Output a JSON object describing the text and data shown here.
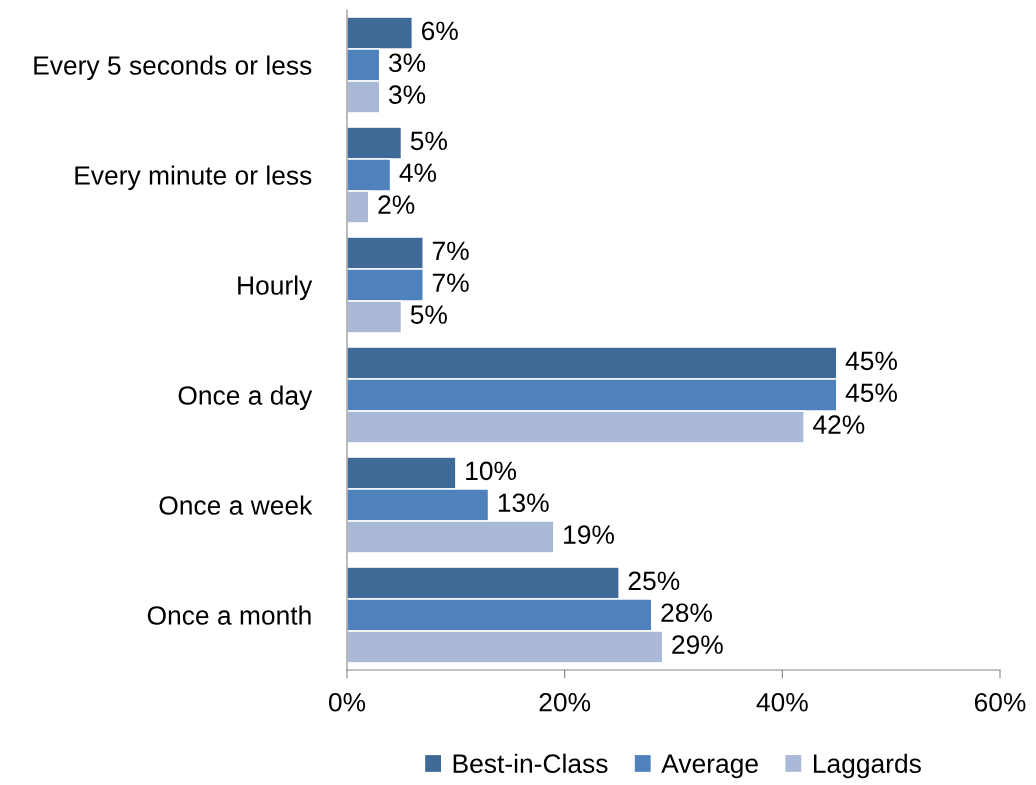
{
  "chart_data": {
    "type": "bar",
    "orientation": "horizontal",
    "categories": [
      "Every 5 seconds or less",
      "Every minute or less",
      "Hourly",
      "Once a day",
      "Once a week",
      "Once a month"
    ],
    "series": [
      {
        "name": "Best-in-Class",
        "color": "#3f6997",
        "values": [
          6,
          5,
          7,
          45,
          10,
          25
        ],
        "value_labels": [
          "6%",
          "5%",
          "7%",
          "45%",
          "10%",
          "25%"
        ]
      },
      {
        "name": "Average",
        "color": "#4f81bd",
        "values": [
          3,
          4,
          7,
          45,
          13,
          28
        ],
        "value_labels": [
          "3%",
          "4%",
          "7%",
          "45%",
          "13%",
          "28%"
        ]
      },
      {
        "name": "Laggards",
        "color": "#aab9d8",
        "values": [
          3,
          2,
          5,
          42,
          19,
          29
        ],
        "value_labels": [
          "3%",
          "2%",
          "5%",
          "42%",
          "19%",
          "29%"
        ]
      }
    ],
    "xlim": [
      0,
      60
    ],
    "xticks": [
      {
        "value": 0,
        "label": "0%"
      },
      {
        "value": 20,
        "label": "20%"
      },
      {
        "value": 40,
        "label": "40%"
      },
      {
        "value": 60,
        "label": "60%"
      }
    ],
    "grid": false,
    "legend": "bottom"
  }
}
